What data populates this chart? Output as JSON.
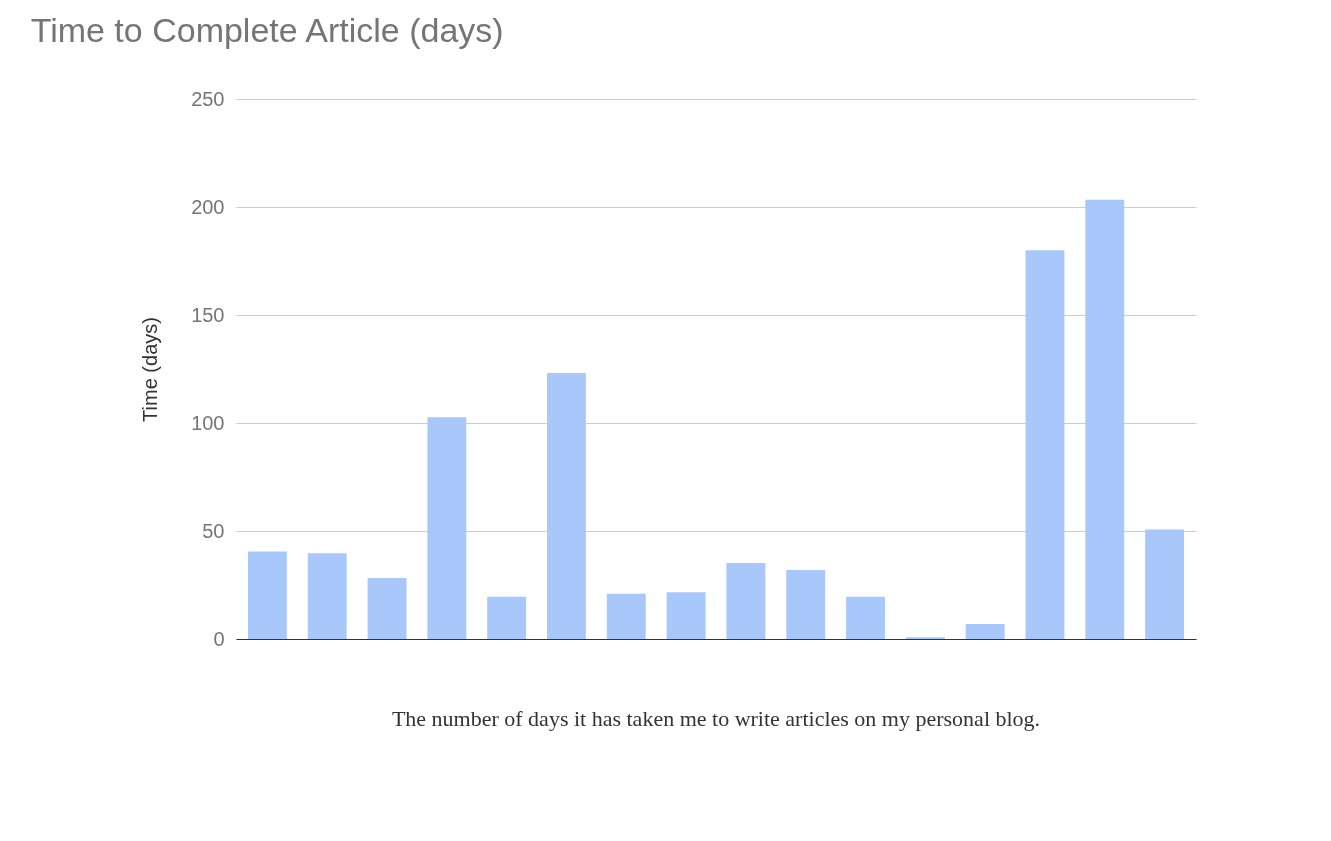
{
  "chart_data": {
    "type": "bar",
    "title": "Time to Complete Article (days)",
    "ylabel": "Time (days)",
    "categories": [
      null,
      null,
      null,
      null,
      null,
      null,
      null,
      null,
      null,
      null,
      null,
      null,
      null,
      null,
      null,
      null
    ],
    "values": [
      40.5,
      39.7,
      28.2,
      102.7,
      19.6,
      123.2,
      20.9,
      21.7,
      35.2,
      31.9,
      19.6,
      0.8,
      7,
      180,
      203.4,
      50.7
    ],
    "color": "#a8c7fa",
    "ylim": [
      0,
      250
    ],
    "yticks": [
      0,
      50,
      100,
      150,
      200,
      250
    ],
    "grid": "y",
    "tick_labels": "y",
    "annotations": [
      "The number of days it has taken me to write articles on my personal blog."
    ]
  }
}
